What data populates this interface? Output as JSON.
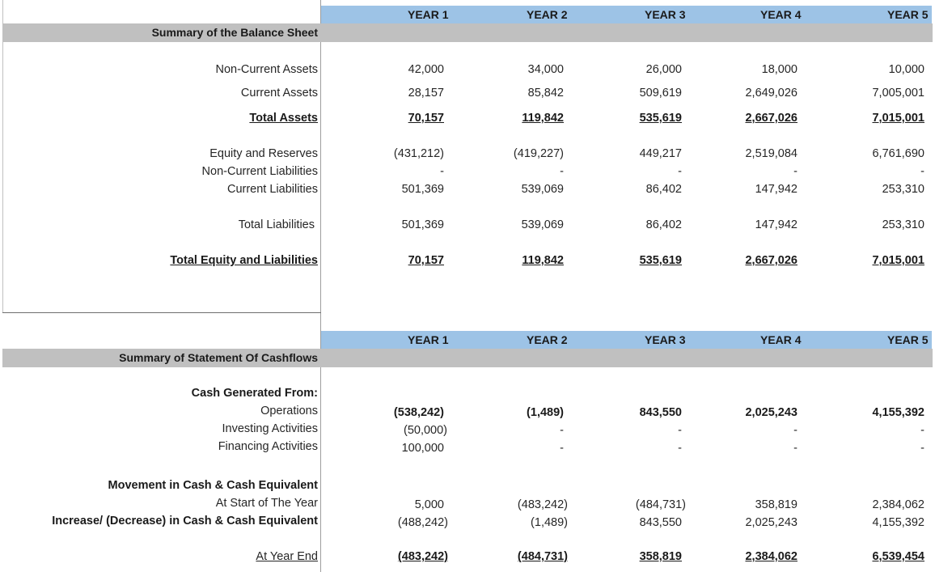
{
  "columns": [
    "YEAR 1",
    "YEAR 2",
    "YEAR 3",
    "YEAR 4",
    "YEAR 5"
  ],
  "balance_sheet": {
    "title": "Summary of the Balance Sheet",
    "rows": [
      {
        "label": "Non-Current Assets",
        "values": [
          "42,000",
          "34,000",
          "26,000",
          "18,000",
          "10,000"
        ]
      },
      {
        "label": "Current Assets",
        "values": [
          "28,157",
          "85,842",
          "509,619",
          "2,649,026",
          "7,005,001"
        ]
      },
      {
        "label": "Total Assets",
        "values": [
          "70,157",
          "119,842",
          "535,619",
          "2,667,026",
          "7,015,001"
        ]
      },
      {
        "label": "Equity and Reserves",
        "values": [
          "(431,212)",
          "(419,227)",
          "449,217",
          "2,519,084",
          "6,761,690"
        ]
      },
      {
        "label": "Non-Current Liabilities",
        "values": [
          "-",
          "-",
          "-",
          "-",
          "-"
        ]
      },
      {
        "label": "Current Liabilities",
        "values": [
          "501,369",
          "539,069",
          "86,402",
          "147,942",
          "253,310"
        ]
      },
      {
        "label": "Total Liabilities",
        "values": [
          "501,369",
          "539,069",
          "86,402",
          "147,942",
          "253,310"
        ]
      },
      {
        "label": "Total Equity and Liabilities",
        "values": [
          "70,157",
          "119,842",
          "535,619",
          "2,667,026",
          "7,015,001"
        ]
      }
    ]
  },
  "cashflows": {
    "title": "Summary of Statement Of Cashflows",
    "rows": [
      {
        "label": "Cash Generated From:",
        "values": []
      },
      {
        "label": "Operations",
        "values": [
          "(538,242)",
          "(1,489)",
          "843,550",
          "2,025,243",
          "4,155,392"
        ]
      },
      {
        "label": "Investing Activities",
        "values": [
          "(50,000)",
          "-",
          "-",
          "-",
          "-"
        ]
      },
      {
        "label": "Financing Activities",
        "values": [
          "100,000",
          "-",
          "-",
          "-",
          "-"
        ]
      },
      {
        "label": "Movement in Cash & Cash Equivalent",
        "values": []
      },
      {
        "label": "At Start of The Year",
        "values": [
          "5,000",
          "(483,242)",
          "(484,731)",
          "358,819",
          "2,384,062"
        ]
      },
      {
        "label": "Increase/ (Decrease) in Cash & Cash Equivalent",
        "values": [
          "(488,242)",
          "(1,489)",
          "843,550",
          "2,025,243",
          "4,155,392"
        ]
      },
      {
        "label": "At Year End",
        "values": [
          "(483,242)",
          "(484,731)",
          "358,819",
          "2,384,062",
          "6,539,454"
        ]
      }
    ]
  }
}
